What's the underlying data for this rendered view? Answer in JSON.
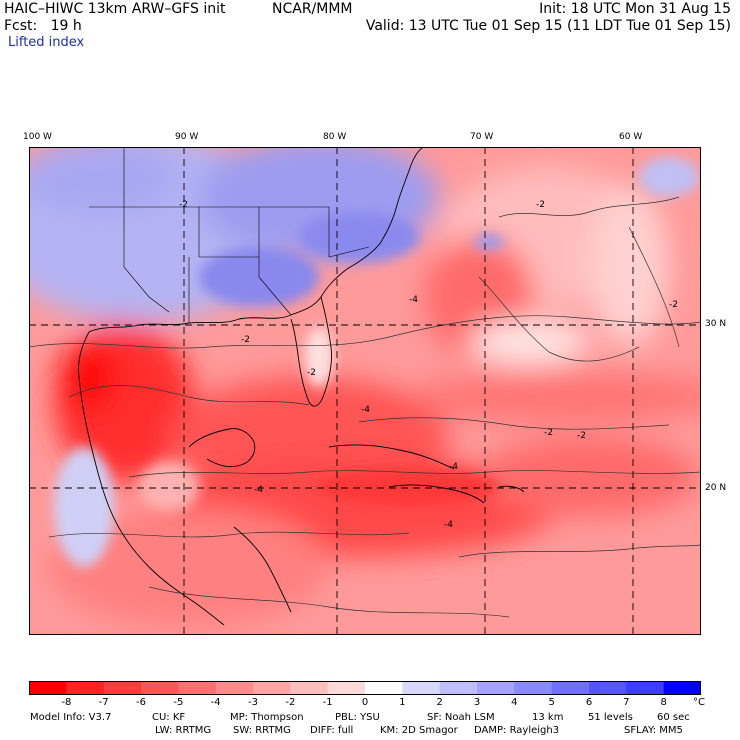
{
  "header": {
    "model_title": "HAIC–HIWC 13km ARW–GFS init",
    "org": "NCAR/MMM",
    "init": "Init: 18 UTC Mon 31 Aug 15",
    "fcst": "Fcst:   19 h",
    "valid": "Valid: 13 UTC Tue 01 Sep 15 (11 LDT Tue 01 Sep 15)",
    "field": "Lifted index"
  },
  "map": {
    "lon_labels": [
      "100 W",
      "90 W",
      "80 W",
      "70 W",
      "60 W"
    ],
    "lat_labels": [
      "30 N",
      "20 N"
    ],
    "contour_labels": [
      "-2",
      "-4",
      "-2",
      "-2",
      "-4",
      "-2",
      "-2",
      "-4",
      "-2",
      "-4",
      "-2",
      "-4"
    ],
    "lon_range": [
      -100,
      -56
    ],
    "lat_range": [
      10,
      40
    ],
    "gridlines": "dashed"
  },
  "colorbar": {
    "ticks": [
      "-8",
      "-7",
      "-6",
      "-5",
      "-4",
      "-3",
      "-2",
      "-1",
      "0",
      "1",
      "2",
      "3",
      "4",
      "5",
      "6",
      "7",
      "8"
    ],
    "unit": "°C",
    "colors": [
      "#ff0000",
      "#ff2323",
      "#ff3d3d",
      "#ff5656",
      "#ff7070",
      "#ff8a8a",
      "#ffa4a4",
      "#ffbebe",
      "#ffd8d8",
      "#ffffff",
      "#d8d8ff",
      "#bebeff",
      "#a4a4ff",
      "#8a8aff",
      "#7070ff",
      "#5656ff",
      "#3d3dff",
      "#0000ff"
    ]
  },
  "footer": {
    "line1": [
      "Model Info: V3.7",
      "CU: KF",
      "MP: Thompson",
      "PBL: YSU",
      "SF: Noah LSM",
      "13 km",
      "51 levels",
      "60 sec"
    ],
    "line2": [
      "LW: RRTMG",
      "SW: RRTMG",
      "DIFF: full",
      "KM: 2D Smagor",
      "DAMP: Rayleigh3",
      "SFLAY: MM5"
    ]
  }
}
